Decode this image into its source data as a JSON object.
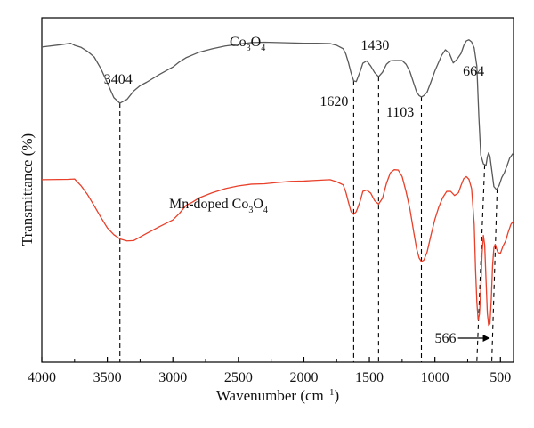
{
  "chart_data": {
    "type": "line",
    "xlabel": "Wavenumber (cm",
    "xlabel_sup": "−1",
    "xlabel_end": ")",
    "ylabel": "Transmittance (%)",
    "xlim": [
      4000,
      400
    ],
    "x_reversed": true,
    "y_ticks_shown": false,
    "xticks": [
      4000,
      3500,
      3000,
      2500,
      2000,
      1500,
      1000,
      500
    ],
    "xtick_labels": [
      "4000",
      "3500",
      "3000",
      "2500",
      "2000",
      "1500",
      "1000",
      "500"
    ],
    "y_units": "relative transmittance (0–100 scale, no printed ticks)",
    "series": [
      {
        "label_parts": [
          "Co",
          "3",
          "O",
          "4"
        ],
        "color": "#595959",
        "x": [
          4000,
          3850,
          3780,
          3750,
          3700,
          3650,
          3600,
          3550,
          3500,
          3450,
          3404,
          3350,
          3300,
          3250,
          3200,
          3100,
          3000,
          2950,
          2900,
          2850,
          2800,
          2700,
          2600,
          2500,
          2400,
          2300,
          2200,
          2100,
          2000,
          1900,
          1800,
          1750,
          1700,
          1680,
          1660,
          1640,
          1620,
          1600,
          1570,
          1550,
          1520,
          1490,
          1460,
          1430,
          1400,
          1370,
          1340,
          1310,
          1280,
          1250,
          1220,
          1190,
          1160,
          1140,
          1120,
          1103,
          1085,
          1060,
          1030,
          1000,
          970,
          950,
          920,
          890,
          860,
          830,
          800,
          780,
          760,
          740,
          720,
          700,
          680,
          664,
          650,
          630,
          610,
          600,
          590,
          580,
          566,
          550,
          530,
          510,
          490,
          470,
          450,
          430,
          410,
          400
        ],
        "y": [
          91.5,
          92.2,
          92.6,
          92.0,
          91.4,
          90.2,
          88.6,
          85.3,
          81.1,
          76.8,
          75.2,
          76.3,
          78.7,
          80.3,
          81.3,
          83.6,
          85.7,
          87.2,
          88.4,
          89.2,
          90.0,
          91.0,
          91.8,
          92.3,
          92.8,
          92.9,
          92.8,
          92.7,
          92.6,
          92.6,
          92.5,
          92.0,
          91.0,
          89.5,
          87.0,
          84.0,
          81.7,
          81.5,
          84.5,
          86.8,
          87.5,
          86.0,
          84.1,
          82.9,
          84.2,
          86.5,
          87.5,
          87.6,
          87.6,
          87.6,
          86.5,
          84.3,
          80.8,
          78.5,
          77.4,
          77.0,
          77.4,
          78.4,
          81.4,
          84.6,
          87.2,
          89.0,
          90.7,
          89.7,
          86.9,
          88.0,
          89.7,
          91.9,
          93.3,
          93.6,
          93.0,
          91.2,
          86.0,
          70.8,
          60.2,
          57.6,
          57.1,
          59.6,
          60.8,
          59.8,
          55.7,
          51.0,
          50.1,
          51.3,
          53.6,
          55.0,
          57.0,
          59.2,
          60.3,
          60.8
        ]
      },
      {
        "label_parts": [
          "Mn-doped Co",
          "3",
          "O",
          "4"
        ],
        "color": "#e8402a",
        "x": [
          4000,
          3800,
          3750,
          3700,
          3650,
          3600,
          3550,
          3500,
          3450,
          3404,
          3350,
          3300,
          3200,
          3100,
          3000,
          2950,
          2900,
          2850,
          2800,
          2700,
          2600,
          2500,
          2400,
          2300,
          2200,
          2100,
          2000,
          1900,
          1800,
          1750,
          1700,
          1680,
          1660,
          1640,
          1620,
          1600,
          1570,
          1550,
          1520,
          1490,
          1460,
          1430,
          1400,
          1370,
          1340,
          1310,
          1280,
          1250,
          1220,
          1190,
          1160,
          1140,
          1120,
          1103,
          1085,
          1060,
          1030,
          1000,
          970,
          940,
          910,
          880,
          850,
          820,
          800,
          780,
          760,
          740,
          720,
          700,
          690,
          680,
          670,
          660,
          650,
          640,
          630,
          620,
          610,
          600,
          590,
          580,
          570,
          560,
          550,
          540,
          530,
          520,
          500,
          480,
          460,
          440,
          420,
          400
        ],
        "y": [
          53.0,
          53.1,
          53.2,
          51.2,
          48.6,
          45.4,
          42.1,
          39.0,
          37.0,
          35.8,
          35.2,
          35.3,
          37.4,
          39.4,
          41.3,
          43.2,
          45.5,
          46.5,
          47.7,
          49.2,
          50.4,
          51.2,
          51.7,
          51.8,
          52.2,
          52.5,
          52.6,
          52.8,
          53.0,
          52.4,
          51.5,
          49.4,
          46.5,
          43.7,
          42.9,
          43.7,
          46.8,
          49.6,
          50.0,
          49.1,
          46.9,
          45.9,
          47.6,
          51.9,
          55.0,
          55.9,
          55.8,
          53.9,
          49.5,
          44.3,
          37.4,
          33.0,
          30.2,
          29.2,
          29.6,
          31.9,
          36.9,
          41.5,
          45.1,
          47.8,
          49.6,
          49.6,
          48.4,
          49.2,
          51.4,
          53.3,
          53.9,
          53.1,
          50.4,
          40.0,
          27.0,
          17.5,
          12.2,
          14.0,
          21.0,
          31.5,
          36.8,
          34.0,
          24.0,
          14.3,
          10.7,
          11.2,
          18.0,
          28.0,
          33.2,
          34.2,
          33.0,
          31.9,
          31.6,
          33.7,
          35.2,
          37.8,
          40.0,
          41.0
        ]
      }
    ],
    "annotations": [
      {
        "text": "3404",
        "peak": 3404
      },
      {
        "text": "1620",
        "peak": 1620
      },
      {
        "text": "1430",
        "peak": 1430
      },
      {
        "text": "1103",
        "peak": 1103
      },
      {
        "text": "664",
        "peak": 664
      },
      {
        "text": "566",
        "peak": 566
      }
    ]
  }
}
